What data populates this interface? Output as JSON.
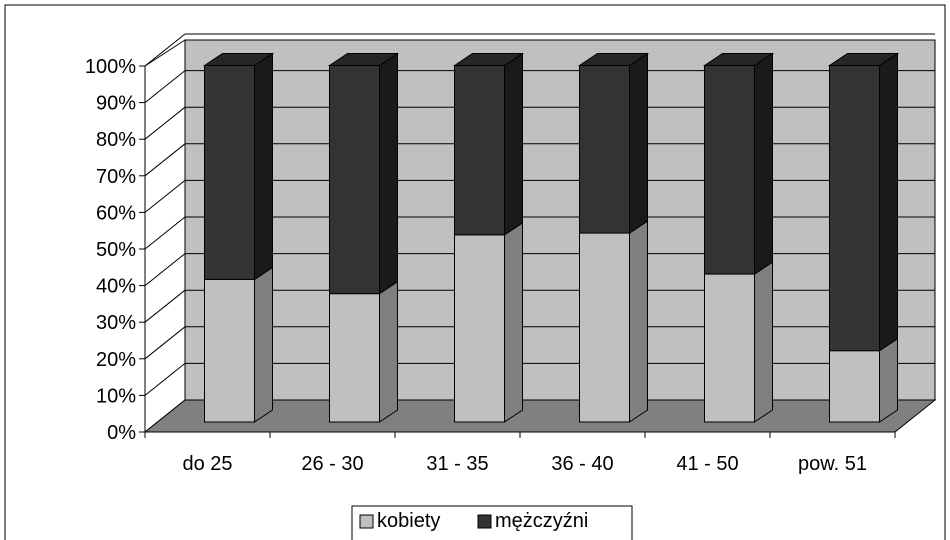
{
  "chart_data": {
    "type": "bar",
    "stacked": "percent",
    "three_d": true,
    "categories": [
      "do 25",
      "26 - 30",
      "31 - 35",
      "36 - 40",
      "41 - 50",
      "pow. 51"
    ],
    "series": [
      {
        "name": "kobiety",
        "values": [
          40,
          36,
          52.5,
          53,
          41.5,
          20
        ]
      },
      {
        "name": "mężczyźni",
        "values": [
          60,
          64,
          47.5,
          47,
          58.5,
          80
        ]
      }
    ],
    "y_ticks": [
      "0%",
      "10%",
      "20%",
      "30%",
      "40%",
      "50%",
      "60%",
      "70%",
      "80%",
      "90%",
      "100%"
    ],
    "ylim": [
      0,
      100
    ],
    "grid": true,
    "legend": "bottom",
    "colors": {
      "kobiety_front": "#c0c0c0",
      "kobiety_side": "#808080",
      "kobiety_top": "#e0e0e0",
      "men_front": "#333333",
      "men_side": "#1a1a1a",
      "men_top": "#262626",
      "wall": "#c0c0c0",
      "floor": "#808080"
    }
  }
}
